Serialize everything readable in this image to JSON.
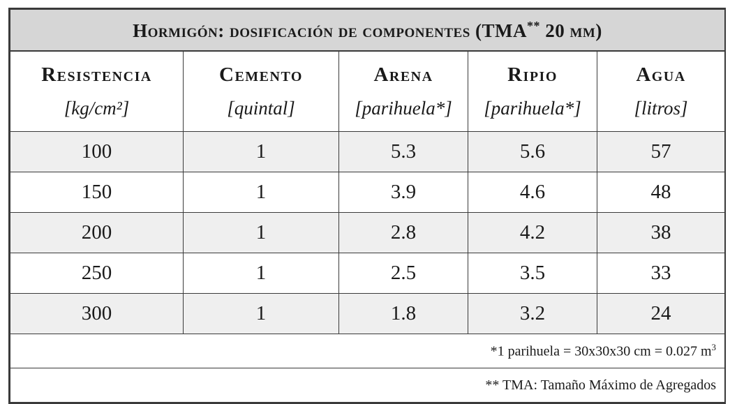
{
  "title": {
    "main": "Hormigón: dosificación de componentes (TMA",
    "stars": "**",
    "tail": " 20 mm)"
  },
  "columns": [
    {
      "name": "Resistencia",
      "unit": "[kg/cm²]"
    },
    {
      "name": "Cemento",
      "unit": "[quintal]"
    },
    {
      "name": "Arena",
      "unit": "[parihuela*]"
    },
    {
      "name": "Ripio",
      "unit": "[parihuela*]"
    },
    {
      "name": "Agua",
      "unit": "[litros]"
    }
  ],
  "rows": [
    [
      "100",
      "1",
      "5.3",
      "5.6",
      "57"
    ],
    [
      "150",
      "1",
      "3.9",
      "4.6",
      "48"
    ],
    [
      "200",
      "1",
      "2.8",
      "4.2",
      "38"
    ],
    [
      "250",
      "1",
      "2.5",
      "3.5",
      "33"
    ],
    [
      "300",
      "1",
      "1.8",
      "3.2",
      "24"
    ]
  ],
  "notes": {
    "parihuela": {
      "text": "*1 parihuela = 30x30x30 cm = 0.027 m",
      "sup": "3"
    },
    "tma": "** TMA: Tamaño Máximo de Agregados"
  },
  "colors": {
    "title_bg": "#d6d6d6",
    "shaded_row_bg": "#efefef",
    "border": "#3a3a3a"
  }
}
